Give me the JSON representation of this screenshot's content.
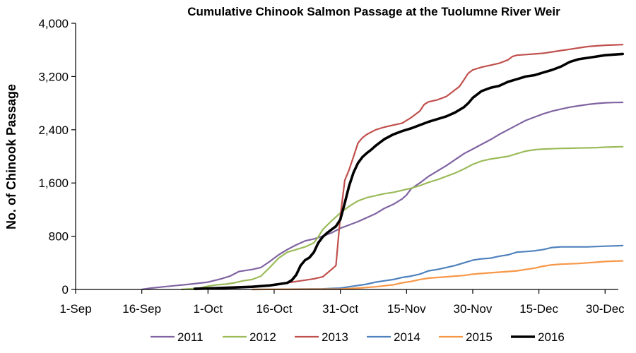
{
  "chart_data": {
    "type": "line",
    "title": "Cumulative Chinook Salmon Passage at the Tuolumne River Weir",
    "xlabel": "",
    "ylabel": "No. of Chinook Passage",
    "x_tick_labels": [
      "1-Sep",
      "16-Sep",
      "1-Oct",
      "16-Oct",
      "31-Oct",
      "15-Nov",
      "30-Nov",
      "15-Dec",
      "30-Dec"
    ],
    "y_tick_labels": [
      "0",
      "800",
      "1,600",
      "2,400",
      "3,200",
      "4,000"
    ],
    "x_range_days": [
      0,
      123
    ],
    "ylim": [
      0,
      4000
    ],
    "grid": false,
    "legend_position": "bottom",
    "x_unit": "days since 1-Sep",
    "series": [
      {
        "name": "2011",
        "color": "#8064a2",
        "width": 2.2,
        "points": [
          [
            15,
            0
          ],
          [
            17,
            20
          ],
          [
            20,
            40
          ],
          [
            23,
            60
          ],
          [
            26,
            80
          ],
          [
            30,
            110
          ],
          [
            33,
            160
          ],
          [
            35,
            200
          ],
          [
            37,
            270
          ],
          [
            40,
            300
          ],
          [
            42,
            330
          ],
          [
            44,
            420
          ],
          [
            46,
            520
          ],
          [
            48,
            600
          ],
          [
            50,
            670
          ],
          [
            52,
            730
          ],
          [
            54,
            760
          ],
          [
            56,
            800
          ],
          [
            58,
            850
          ],
          [
            60,
            920
          ],
          [
            62,
            970
          ],
          [
            64,
            1020
          ],
          [
            66,
            1080
          ],
          [
            68,
            1140
          ],
          [
            70,
            1220
          ],
          [
            72,
            1280
          ],
          [
            74,
            1360
          ],
          [
            75,
            1420
          ],
          [
            76,
            1510
          ],
          [
            78,
            1600
          ],
          [
            80,
            1700
          ],
          [
            82,
            1780
          ],
          [
            84,
            1860
          ],
          [
            86,
            1950
          ],
          [
            88,
            2040
          ],
          [
            90,
            2110
          ],
          [
            92,
            2180
          ],
          [
            94,
            2250
          ],
          [
            96,
            2330
          ],
          [
            98,
            2400
          ],
          [
            100,
            2470
          ],
          [
            102,
            2540
          ],
          [
            104,
            2590
          ],
          [
            106,
            2640
          ],
          [
            108,
            2680
          ],
          [
            110,
            2710
          ],
          [
            112,
            2740
          ],
          [
            114,
            2760
          ],
          [
            116,
            2780
          ],
          [
            118,
            2795
          ],
          [
            120,
            2805
          ],
          [
            122,
            2810
          ],
          [
            124,
            2812
          ]
        ]
      },
      {
        "name": "2012",
        "color": "#9bbb59",
        "width": 2.2,
        "points": [
          [
            24,
            0
          ],
          [
            28,
            20
          ],
          [
            30,
            50
          ],
          [
            32,
            70
          ],
          [
            34,
            80
          ],
          [
            36,
            100
          ],
          [
            38,
            130
          ],
          [
            40,
            150
          ],
          [
            42,
            200
          ],
          [
            44,
            330
          ],
          [
            46,
            470
          ],
          [
            48,
            560
          ],
          [
            50,
            600
          ],
          [
            52,
            640
          ],
          [
            54,
            700
          ],
          [
            55,
            790
          ],
          [
            56,
            900
          ],
          [
            58,
            1030
          ],
          [
            60,
            1150
          ],
          [
            62,
            1250
          ],
          [
            64,
            1330
          ],
          [
            66,
            1380
          ],
          [
            68,
            1410
          ],
          [
            70,
            1440
          ],
          [
            72,
            1460
          ],
          [
            74,
            1490
          ],
          [
            76,
            1520
          ],
          [
            78,
            1560
          ],
          [
            80,
            1610
          ],
          [
            82,
            1650
          ],
          [
            84,
            1700
          ],
          [
            86,
            1750
          ],
          [
            88,
            1810
          ],
          [
            90,
            1880
          ],
          [
            92,
            1930
          ],
          [
            94,
            1960
          ],
          [
            96,
            1980
          ],
          [
            98,
            2000
          ],
          [
            100,
            2040
          ],
          [
            102,
            2080
          ],
          [
            104,
            2100
          ],
          [
            106,
            2110
          ],
          [
            108,
            2115
          ],
          [
            110,
            2120
          ],
          [
            112,
            2122
          ],
          [
            114,
            2125
          ],
          [
            116,
            2128
          ],
          [
            118,
            2132
          ],
          [
            120,
            2138
          ],
          [
            122,
            2142
          ],
          [
            124,
            2145
          ]
        ]
      },
      {
        "name": "2013",
        "color": "#c0504d",
        "width": 2.2,
        "points": [
          [
            27,
            0
          ],
          [
            30,
            10
          ],
          [
            33,
            20
          ],
          [
            36,
            30
          ],
          [
            40,
            40
          ],
          [
            44,
            60
          ],
          [
            46,
            80
          ],
          [
            48,
            100
          ],
          [
            50,
            120
          ],
          [
            52,
            140
          ],
          [
            54,
            160
          ],
          [
            56,
            190
          ],
          [
            58,
            300
          ],
          [
            59,
            360
          ],
          [
            60,
            1100
          ],
          [
            61,
            1640
          ],
          [
            62,
            1800
          ],
          [
            63,
            2000
          ],
          [
            64,
            2200
          ],
          [
            65,
            2280
          ],
          [
            66,
            2330
          ],
          [
            68,
            2400
          ],
          [
            70,
            2440
          ],
          [
            72,
            2470
          ],
          [
            74,
            2500
          ],
          [
            76,
            2580
          ],
          [
            78,
            2680
          ],
          [
            79,
            2780
          ],
          [
            80,
            2820
          ],
          [
            82,
            2850
          ],
          [
            84,
            2900
          ],
          [
            86,
            3000
          ],
          [
            87,
            3050
          ],
          [
            88,
            3150
          ],
          [
            89,
            3250
          ],
          [
            90,
            3300
          ],
          [
            92,
            3340
          ],
          [
            94,
            3370
          ],
          [
            96,
            3400
          ],
          [
            98,
            3450
          ],
          [
            99,
            3500
          ],
          [
            100,
            3520
          ],
          [
            102,
            3530
          ],
          [
            104,
            3540
          ],
          [
            106,
            3550
          ],
          [
            108,
            3570
          ],
          [
            110,
            3590
          ],
          [
            112,
            3610
          ],
          [
            114,
            3630
          ],
          [
            116,
            3650
          ],
          [
            118,
            3660
          ],
          [
            120,
            3670
          ],
          [
            122,
            3675
          ],
          [
            124,
            3680
          ]
        ]
      },
      {
        "name": "2014",
        "color": "#4f81bd",
        "width": 2.2,
        "points": [
          [
            40,
            0
          ],
          [
            50,
            5
          ],
          [
            56,
            10
          ],
          [
            60,
            20
          ],
          [
            62,
            40
          ],
          [
            64,
            60
          ],
          [
            66,
            80
          ],
          [
            68,
            110
          ],
          [
            70,
            130
          ],
          [
            72,
            150
          ],
          [
            74,
            180
          ],
          [
            76,
            200
          ],
          [
            78,
            230
          ],
          [
            80,
            280
          ],
          [
            82,
            300
          ],
          [
            84,
            330
          ],
          [
            86,
            360
          ],
          [
            88,
            400
          ],
          [
            90,
            440
          ],
          [
            92,
            460
          ],
          [
            94,
            470
          ],
          [
            96,
            500
          ],
          [
            98,
            520
          ],
          [
            100,
            560
          ],
          [
            102,
            570
          ],
          [
            104,
            580
          ],
          [
            106,
            600
          ],
          [
            108,
            630
          ],
          [
            110,
            640
          ],
          [
            112,
            640
          ],
          [
            114,
            640
          ],
          [
            116,
            640
          ],
          [
            118,
            645
          ],
          [
            120,
            650
          ],
          [
            122,
            655
          ],
          [
            124,
            660
          ]
        ]
      },
      {
        "name": "2015",
        "color": "#f79646",
        "width": 2.2,
        "points": [
          [
            40,
            0
          ],
          [
            60,
            5
          ],
          [
            64,
            20
          ],
          [
            68,
            40
          ],
          [
            72,
            70
          ],
          [
            74,
            100
          ],
          [
            76,
            120
          ],
          [
            78,
            150
          ],
          [
            80,
            170
          ],
          [
            82,
            180
          ],
          [
            84,
            190
          ],
          [
            86,
            200
          ],
          [
            88,
            210
          ],
          [
            90,
            230
          ],
          [
            92,
            240
          ],
          [
            94,
            250
          ],
          [
            96,
            260
          ],
          [
            98,
            270
          ],
          [
            100,
            280
          ],
          [
            102,
            300
          ],
          [
            104,
            320
          ],
          [
            106,
            350
          ],
          [
            108,
            370
          ],
          [
            110,
            380
          ],
          [
            112,
            385
          ],
          [
            114,
            390
          ],
          [
            116,
            400
          ],
          [
            118,
            410
          ],
          [
            120,
            420
          ],
          [
            122,
            425
          ],
          [
            124,
            430
          ]
        ]
      },
      {
        "name": "2016",
        "color": "#000000",
        "width": 3.6,
        "points": [
          [
            27,
            10
          ],
          [
            32,
            20
          ],
          [
            36,
            30
          ],
          [
            40,
            40
          ],
          [
            44,
            60
          ],
          [
            46,
            80
          ],
          [
            48,
            100
          ],
          [
            49,
            140
          ],
          [
            50,
            220
          ],
          [
            51,
            360
          ],
          [
            52,
            440
          ],
          [
            53,
            480
          ],
          [
            54,
            560
          ],
          [
            55,
            700
          ],
          [
            56,
            790
          ],
          [
            57,
            850
          ],
          [
            58,
            900
          ],
          [
            59,
            950
          ],
          [
            60,
            1050
          ],
          [
            61,
            1300
          ],
          [
            62,
            1560
          ],
          [
            63,
            1760
          ],
          [
            64,
            1900
          ],
          [
            65,
            1990
          ],
          [
            66,
            2050
          ],
          [
            67,
            2100
          ],
          [
            68,
            2160
          ],
          [
            69,
            2210
          ],
          [
            70,
            2260
          ],
          [
            72,
            2330
          ],
          [
            74,
            2380
          ],
          [
            76,
            2420
          ],
          [
            78,
            2470
          ],
          [
            80,
            2520
          ],
          [
            82,
            2560
          ],
          [
            84,
            2600
          ],
          [
            86,
            2660
          ],
          [
            88,
            2740
          ],
          [
            89,
            2800
          ],
          [
            90,
            2880
          ],
          [
            92,
            2980
          ],
          [
            94,
            3030
          ],
          [
            96,
            3060
          ],
          [
            98,
            3120
          ],
          [
            100,
            3160
          ],
          [
            102,
            3200
          ],
          [
            104,
            3220
          ],
          [
            106,
            3260
          ],
          [
            108,
            3300
          ],
          [
            110,
            3350
          ],
          [
            112,
            3420
          ],
          [
            114,
            3460
          ],
          [
            116,
            3480
          ],
          [
            118,
            3500
          ],
          [
            120,
            3520
          ],
          [
            122,
            3530
          ],
          [
            124,
            3540
          ]
        ]
      }
    ]
  }
}
